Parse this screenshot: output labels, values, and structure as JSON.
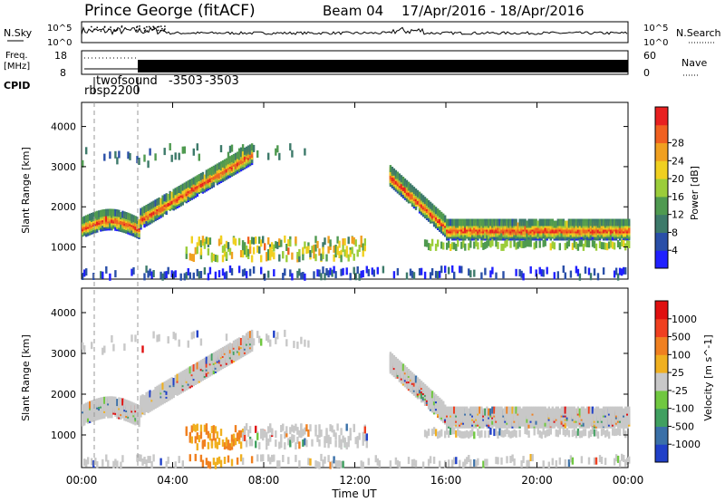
{
  "header": {
    "station": "Prince George (fitACF)",
    "beam": "Beam 04",
    "date_range": "17/Apr/2016 - 18/Apr/2016"
  },
  "top_panels": {
    "nsky": {
      "label": "N.Sky",
      "yticks": [
        "10^5",
        "10^0"
      ],
      "right_label": "N.Search",
      "right_yticks": [
        "10^5",
        "10^0"
      ]
    },
    "freq": {
      "label_line1": "Freq.",
      "label_line2": "[MHz]",
      "yticks": [
        "18",
        "8"
      ],
      "right_label": "Nave",
      "right_yticks": [
        "60",
        "0"
      ]
    },
    "cpid": {
      "label": "CPID",
      "program_labels": [
        "rbsp2200",
        "twofsound",
        "-3503",
        "-3503"
      ]
    }
  },
  "chart_data": [
    {
      "type": "heatmap",
      "name": "power",
      "ylabel": "Slant Range [km]",
      "ylim": [
        200,
        4600
      ],
      "yticks": [
        1000,
        2000,
        3000,
        4000
      ],
      "xlim_hours": [
        0,
        24
      ],
      "colorbar": {
        "label": "Power [dB]",
        "ticks": [
          4,
          8,
          12,
          16,
          20,
          24,
          28
        ],
        "colors": [
          "#2020ff",
          "#2a4fa8",
          "#3d7a6a",
          "#4f9a50",
          "#9bcd3a",
          "#f0d020",
          "#f0a020",
          "#f06020",
          "#e82020"
        ]
      },
      "echo_bands": [
        {
          "region": "main F-region band",
          "range_km_start": 1500,
          "range_km_16h": 1450,
          "hours": [
            0,
            24
          ]
        },
        {
          "region": "near-range E band",
          "range_km": [
            600,
            1300
          ],
          "hours": [
            4.5,
            12.5
          ]
        },
        {
          "region": "lower band",
          "range_km": 1000,
          "hours": [
            15,
            24
          ]
        }
      ]
    },
    {
      "type": "heatmap",
      "name": "velocity",
      "ylabel": "Slant Range [km]",
      "ylim": [
        200,
        4600
      ],
      "yticks": [
        1000,
        2000,
        3000,
        4000
      ],
      "xlim_hours": [
        0,
        24
      ],
      "colorbar": {
        "label": "Velocity [m s^-1]",
        "ticks": [
          "1000",
          "500",
          "100",
          "25",
          "-25",
          "-100",
          "-500",
          "-1000"
        ],
        "colors": [
          "#2040c8",
          "#3a70a8",
          "#40a060",
          "#70c840",
          "#c8c8c8",
          "#f0b020",
          "#f08020",
          "#f04020",
          "#e01010"
        ]
      }
    }
  ],
  "xaxis": {
    "label": "Time UT",
    "ticks": [
      "00:00",
      "04:00",
      "08:00",
      "12:00",
      "16:00",
      "20:00",
      "00:00"
    ]
  }
}
